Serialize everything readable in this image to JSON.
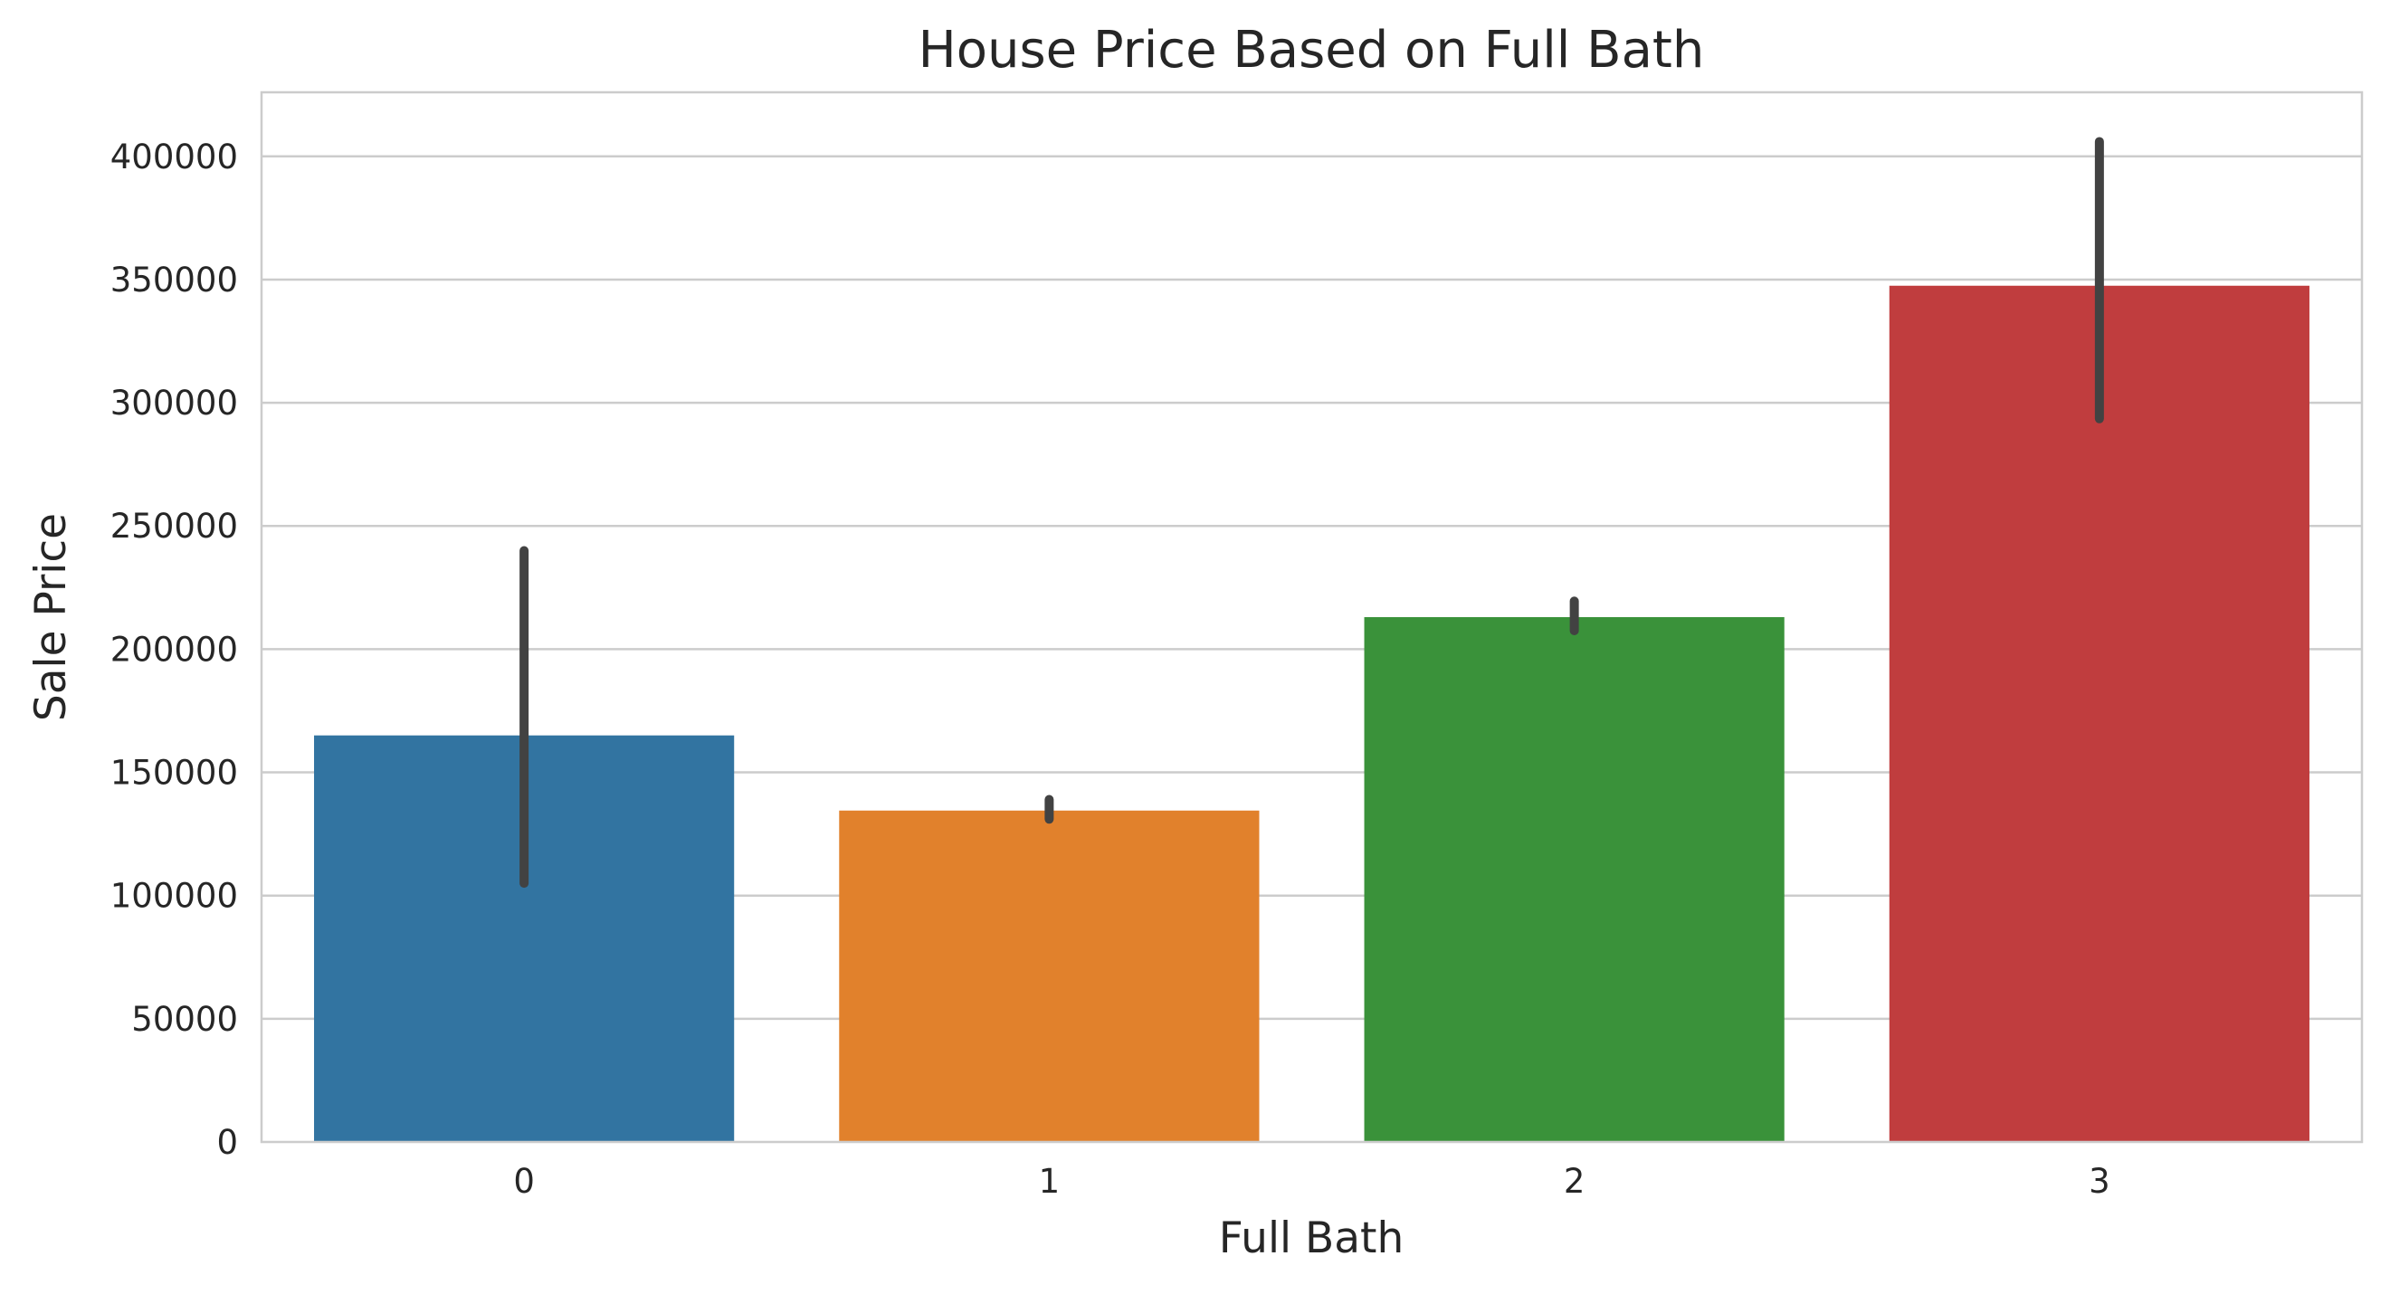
{
  "chart_data": {
    "type": "bar",
    "title": "House Price Based on Full Bath",
    "xlabel": "Full Bath",
    "ylabel": "Sale Price",
    "categories": [
      "0",
      "1",
      "2",
      "3"
    ],
    "values": [
      165000,
      134500,
      213000,
      347500
    ],
    "error_bars": [
      {
        "low": 105000,
        "high": 240000
      },
      {
        "low": 131000,
        "high": 139000
      },
      {
        "low": 207500,
        "high": 219500
      },
      {
        "low": 293500,
        "high": 406000
      }
    ],
    "ylim": [
      0,
      426000
    ],
    "yticks": [
      0,
      50000,
      100000,
      150000,
      200000,
      250000,
      300000,
      350000,
      400000
    ],
    "ytick_labels": [
      "0",
      "50000",
      "100000",
      "150000",
      "200000",
      "250000",
      "300000",
      "350000",
      "400000"
    ],
    "grid": true,
    "colors": [
      "#3274a1",
      "#e1812c",
      "#3a923a",
      "#c03d3e"
    ],
    "error_color": "#424242"
  }
}
